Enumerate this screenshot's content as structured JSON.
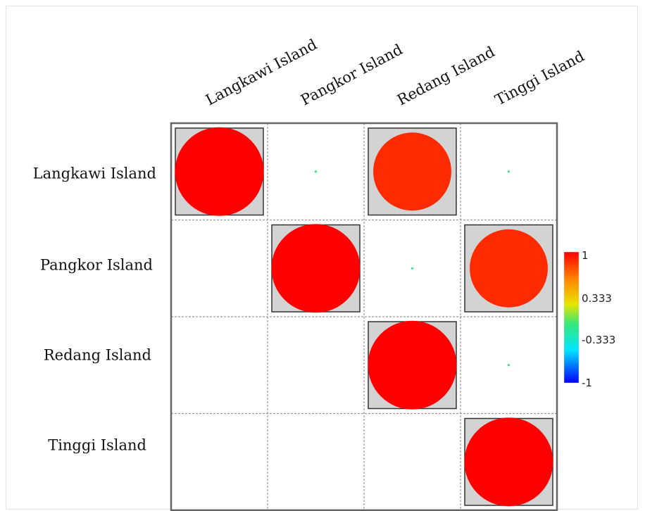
{
  "chart_data": {
    "type": "heatmap",
    "rows": [
      "Langkawi Island",
      "Pangkor Island",
      "Redang Island",
      "Tinggi Island"
    ],
    "columns": [
      "Langkawi Island",
      "Pangkor Island",
      "Redang Island",
      "Tinggi Island"
    ],
    "values": [
      [
        1.0,
        0.0,
        0.88,
        0.0
      ],
      [
        null,
        1.0,
        0.0,
        0.88
      ],
      [
        null,
        null,
        1.0,
        0.0
      ],
      [
        null,
        null,
        null,
        1.0
      ]
    ],
    "highlighted": [
      [
        true,
        false,
        true,
        false
      ],
      [
        false,
        true,
        false,
        true
      ],
      [
        false,
        false,
        true,
        false
      ],
      [
        false,
        false,
        false,
        true
      ]
    ],
    "legend": {
      "min": -1,
      "max": 1,
      "ticks": [
        "1",
        "0.333",
        "-0.333",
        "-1"
      ],
      "colors": [
        "#ff0000",
        "#ff8c00",
        "#e6e600",
        "#36e87a",
        "#00e5ff",
        "#0000ff"
      ]
    },
    "cell_background": "#d3d3d3",
    "grid_color": "#999999"
  }
}
